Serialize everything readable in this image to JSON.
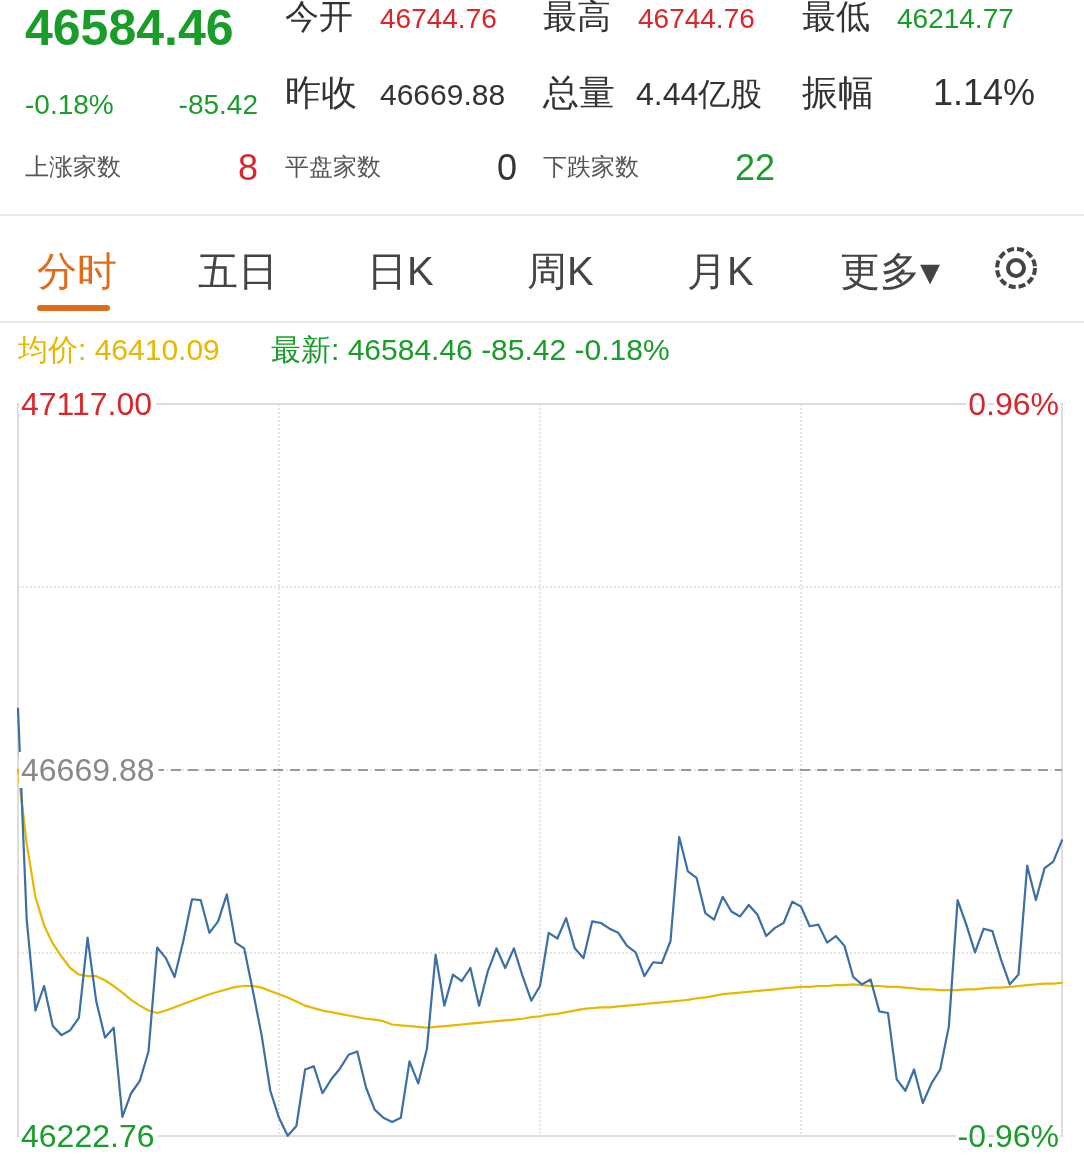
{
  "chart_data": {
    "type": "line",
    "annotations": [
      "46584.46",
      "-0.18%",
      "-85.42",
      "今开",
      "46744.76",
      "最高",
      "46744.76",
      "最低",
      "46214.77",
      "昨收",
      "46669.88",
      "总量",
      "4.44亿股",
      "振幅",
      "1.14%",
      "上涨家数",
      "8",
      "平盘家数",
      "0",
      "下跌家数",
      "22",
      "分时",
      "五日",
      "日K",
      "周K",
      "月K",
      "更多▾",
      "最新: 46584.46 -85.42 -0.18%"
    ],
    "categories": [
      null,
      null,
      null,
      null,
      null,
      null,
      null,
      null,
      null,
      null,
      null,
      null,
      null,
      null,
      null,
      null,
      null,
      null,
      null,
      null,
      null,
      null,
      null,
      null,
      null,
      null,
      null,
      null,
      null,
      null,
      null,
      null,
      null,
      null,
      null,
      null,
      null,
      null,
      null,
      null,
      null,
      null,
      null,
      null,
      null,
      null,
      null,
      null,
      null,
      null,
      null,
      null,
      null,
      null,
      null,
      null,
      null,
      null,
      null,
      null,
      null,
      null,
      null,
      null,
      null,
      null,
      null,
      null,
      null,
      null,
      null,
      null,
      null,
      null,
      null,
      null,
      null,
      null,
      null,
      null,
      null,
      null,
      null,
      null,
      null,
      null,
      null,
      null,
      null,
      null,
      null,
      null,
      null,
      null,
      null,
      null,
      null,
      null,
      null,
      null,
      null,
      null,
      null,
      null,
      null,
      null,
      null,
      null,
      null,
      null,
      null,
      null,
      null,
      null,
      null,
      null,
      null,
      null,
      null,
      null,
      null
    ],
    "ylim": [
      46222.76,
      47117
    ],
    "yticks": [
      {
        "value": 47117,
        "label": "47117.00"
      },
      {
        "value": 46893.44,
        "label": null
      },
      {
        "value": 46669.88,
        "label": "46669.88"
      },
      {
        "value": 46446.32,
        "label": null
      },
      {
        "value": 46222.76,
        "label": "46222.76"
      }
    ],
    "y2lim": [
      -0.96,
      0.96
    ],
    "y2ticks": [
      {
        "value": 0.96,
        "label": "0.96%"
      },
      {
        "value": -0.96,
        "label": "-0.96%"
      }
    ],
    "tick_labels": "y",
    "grid": true,
    "legend": "top left",
    "line_style": "solid",
    "ref_lines": [
      {
        "axis": "y",
        "value": 46669.88,
        "color": "#999999",
        "line_style": "dashed"
      }
    ],
    "series": [
      {
        "color": "#3c6fa3",
        "values": [
          46745,
          46487,
          46376,
          46406,
          46357,
          46346,
          46352,
          46367,
          46465,
          46387,
          46343,
          46355,
          46246,
          46275,
          46290,
          46326,
          46453,
          46440,
          46417,
          46461,
          46512,
          46511,
          46471,
          46485,
          46518,
          46459,
          46452,
          46400,
          46346,
          46278,
          46245,
          46223,
          46235,
          46304,
          46308,
          46275,
          46292,
          46305,
          46322,
          46326,
          46282,
          46255,
          46245,
          46240,
          46245,
          46314,
          46287,
          46329,
          46444,
          46382,
          46420,
          46412,
          46428,
          46382,
          46424,
          46452,
          46428,
          46452,
          46418,
          46388,
          46406,
          46471,
          46464,
          46489,
          46452,
          46440,
          46485,
          46483,
          46476,
          46471,
          46455,
          46447,
          46418,
          46435,
          46434,
          46461,
          46588,
          46546,
          46538,
          46495,
          46487,
          46515,
          46497,
          46491,
          46505,
          46493,
          46467,
          46477,
          46483,
          46509,
          46503,
          46479,
          46481,
          46459,
          46467,
          46455,
          46417,
          46408,
          46414,
          46375,
          46373,
          46292,
          46278,
          46304,
          46263,
          46287,
          46304,
          46357,
          46511,
          46481,
          46447,
          46476,
          46473,
          46438,
          46408,
          46420,
          46553,
          46511,
          46550,
          46558,
          46584
        ]
      },
      {
        "name": "均价: 46410.09",
        "color": "#e6b800",
        "values": [
          46670,
          46580,
          46515,
          46480,
          46458,
          46442,
          46428,
          46420,
          46418,
          46418,
          46413,
          46406,
          46398,
          46389,
          46382,
          46376,
          46373,
          46376,
          46380,
          46384,
          46388,
          46392,
          46396,
          46399,
          46402,
          46405,
          46406,
          46406,
          46404,
          46400,
          46396,
          46392,
          46387,
          46382,
          46379,
          46376,
          46374,
          46372,
          46370,
          46368,
          46366,
          46365,
          46363,
          46359,
          46358,
          46357,
          46356,
          46355,
          46356,
          46357,
          46358,
          46359,
          46360,
          46361,
          46362,
          46363,
          46364,
          46365,
          46366,
          46368,
          46369,
          46371,
          46372,
          46374,
          46376,
          46378,
          46379,
          46380,
          46380,
          46381,
          46382,
          46383,
          46384,
          46385,
          46386,
          46387,
          46388,
          46389,
          46391,
          46392,
          46394,
          46396,
          46397,
          46398,
          46399,
          46400,
          46401,
          46402,
          46403,
          46404,
          46405,
          46405,
          46406,
          46406,
          46407,
          46407,
          46408,
          46407,
          46406,
          46406,
          46405,
          46405,
          46404,
          46403,
          46402,
          46402,
          46401,
          46401,
          46401,
          46402,
          46402,
          46403,
          46404,
          46404,
          46405,
          46406,
          46407,
          46408,
          46409,
          46409,
          46410
        ]
      }
    ]
  }
}
